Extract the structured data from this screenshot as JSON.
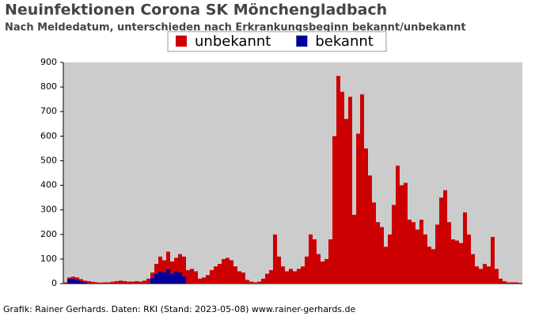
{
  "chart_data": {
    "type": "bar",
    "stacked": true,
    "title": "Neuinfektionen Corona SK Mönchengladbach",
    "subtitle": "Nach Meldedatum, unterschieden nach Erkrankungsbeginn bekannt/unbekannt",
    "source": "Grafik: Rainer Gerhards. Daten: RKI (Stand: 2023-05-08) www.rainer-gerhards.de",
    "series": [
      {
        "name": "unbekannt",
        "color": "#cc0000",
        "values": [
          5,
          5,
          8,
          10,
          8,
          7,
          10,
          7,
          5,
          4,
          5,
          5,
          8,
          10,
          12,
          10,
          8,
          8,
          10,
          8,
          12,
          20,
          20,
          40,
          60,
          50,
          70,
          50,
          55,
          75,
          80,
          55,
          60,
          50,
          20,
          25,
          35,
          55,
          70,
          80,
          100,
          105,
          95,
          70,
          50,
          45,
          15,
          8,
          5,
          8,
          20,
          40,
          55,
          200,
          110,
          70,
          50,
          60,
          50,
          60,
          70,
          110,
          200,
          180,
          120,
          90,
          100,
          180,
          600,
          845,
          780,
          670,
          760,
          280,
          610,
          770,
          550,
          440,
          330,
          250,
          230,
          150,
          200,
          320,
          480,
          400,
          410,
          260,
          250,
          220,
          260,
          200,
          150,
          140,
          240,
          350,
          380,
          250,
          180,
          175,
          165,
          290,
          200,
          120,
          70,
          60,
          80,
          70,
          190,
          60,
          20,
          10,
          5,
          5,
          5,
          3
        ]
      },
      {
        "name": "bekannt",
        "color": "#000099",
        "values": [
          0,
          20,
          20,
          15,
          10,
          5,
          0,
          0,
          0,
          0,
          0,
          0,
          0,
          0,
          0,
          0,
          0,
          0,
          0,
          0,
          0,
          0,
          25,
          40,
          50,
          45,
          60,
          40,
          50,
          45,
          30,
          0,
          0,
          0,
          0,
          0,
          0,
          0,
          0,
          0,
          0,
          0,
          0,
          0,
          0,
          0,
          0,
          0,
          0,
          0,
          0,
          0,
          0,
          0,
          0,
          0,
          0,
          0,
          0,
          0,
          0,
          0,
          0,
          0,
          0,
          0,
          0,
          0,
          0,
          0,
          0,
          0,
          0,
          0,
          0,
          0,
          0,
          0,
          0,
          0,
          0,
          0,
          0,
          0,
          0,
          0,
          0,
          0,
          0,
          0,
          0,
          0,
          0,
          0,
          0,
          0,
          0,
          0,
          0,
          0,
          0,
          0,
          0,
          0,
          0,
          0,
          0,
          0,
          0,
          0,
          0,
          0,
          0,
          0,
          0,
          0
        ]
      }
    ],
    "ylim": [
      0,
      900
    ],
    "yticks": [
      0,
      100,
      200,
      300,
      400,
      500,
      600,
      700,
      800,
      900
    ],
    "grid": false
  }
}
